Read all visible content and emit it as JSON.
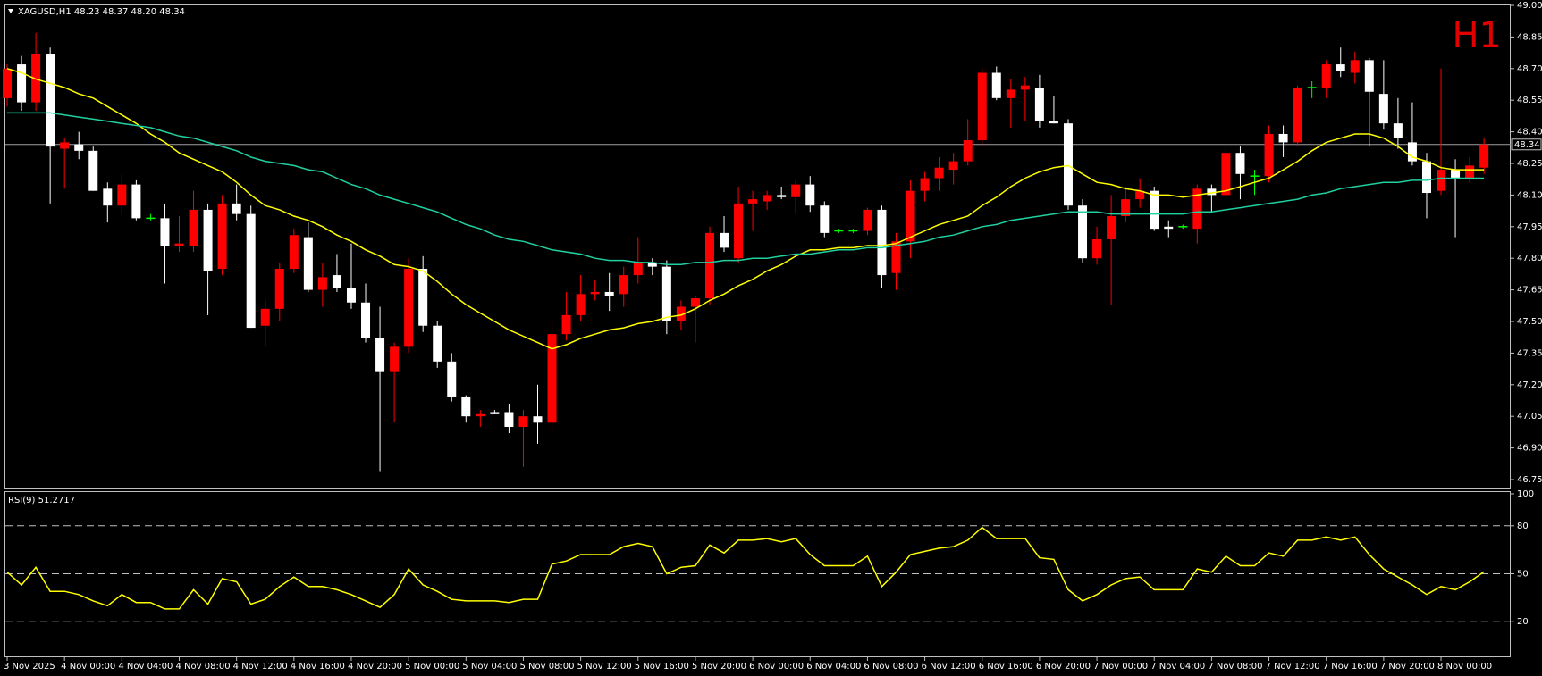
{
  "chart_data": [
    {
      "type": "candlestick",
      "title": "XAGUSD,H1  48.23 48.37 48.20 48.34",
      "timeframe_label": "H1",
      "up_color": "#ff0000",
      "down_color": "#ffffff",
      "doji_color": "#00ff00",
      "categories": [
        "3 Nov 2025",
        null,
        null,
        null,
        "4 Nov 00:00",
        null,
        null,
        null,
        "4 Nov 04:00",
        null,
        null,
        null,
        "4 Nov 08:00",
        null,
        null,
        null,
        "4 Nov 12:00",
        null,
        null,
        null,
        "4 Nov 16:00",
        null,
        null,
        null,
        "4 Nov 20:00",
        null,
        null,
        null,
        "5 Nov 00:00",
        null,
        null,
        null,
        "5 Nov 04:00",
        null,
        null,
        null,
        "5 Nov 08:00",
        null,
        null,
        null,
        "5 Nov 12:00",
        null,
        null,
        null,
        "5 Nov 16:00",
        null,
        null,
        null,
        "5 Nov 20:00",
        null,
        null,
        null,
        "6 Nov 00:00",
        null,
        null,
        null,
        "6 Nov 04:00",
        null,
        null,
        null,
        "6 Nov 08:00",
        null,
        null,
        null,
        "6 Nov 12:00",
        null,
        null,
        null,
        "6 Nov 16:00",
        null,
        null,
        null,
        "6 Nov 20:00",
        null,
        null,
        null,
        "7 Nov 00:00",
        null,
        null,
        null,
        "7 Nov 04:00",
        null,
        null,
        null,
        "7 Nov 08:00",
        null,
        null,
        null,
        "7 Nov 12:00",
        null,
        null,
        null,
        "7 Nov 16:00",
        null,
        null,
        null,
        "7 Nov 20:00",
        null,
        null,
        null,
        "8 Nov 00:00",
        null,
        null,
        null
      ],
      "open": [
        48.56,
        48.72,
        48.54,
        48.77,
        48.32,
        48.34,
        48.31,
        48.13,
        48.05,
        48.15,
        47.99,
        47.99,
        47.86,
        47.86,
        48.03,
        47.75,
        48.06,
        48.01,
        47.48,
        47.56,
        47.75,
        47.9,
        47.65,
        47.72,
        47.66,
        47.59,
        47.42,
        47.26,
        47.38,
        47.75,
        47.48,
        47.31,
        47.14,
        47.05,
        47.07,
        47.07,
        47.0,
        47.05,
        47.02,
        47.44,
        47.53,
        47.63,
        47.64,
        47.63,
        47.72,
        47.78,
        47.76,
        47.5,
        47.57,
        47.61,
        47.92,
        47.8,
        48.06,
        48.07,
        48.1,
        48.09,
        48.15,
        48.05,
        47.93,
        47.93,
        47.93,
        48.03,
        47.73,
        47.88,
        48.12,
        48.18,
        48.22,
        48.26,
        48.36,
        48.68,
        48.56,
        48.6,
        48.61,
        48.45,
        48.44,
        48.05,
        47.8,
        47.89,
        48.0,
        48.08,
        48.12,
        47.95,
        47.95,
        47.94,
        48.13,
        48.1,
        48.3,
        48.19,
        48.19,
        48.39,
        48.35,
        48.61,
        48.61,
        48.72,
        48.68,
        48.74,
        48.58,
        48.44,
        48.35,
        48.26,
        48.12,
        48.22,
        48.18,
        48.23
      ],
      "high": [
        48.72,
        48.76,
        48.87,
        48.8,
        48.37,
        48.4,
        48.33,
        48.16,
        48.2,
        48.17,
        48.01,
        48.06,
        48.0,
        48.12,
        48.06,
        48.1,
        48.15,
        48.05,
        47.6,
        47.78,
        47.94,
        47.97,
        47.78,
        47.82,
        47.87,
        47.68,
        47.57,
        47.4,
        47.8,
        47.81,
        47.5,
        47.35,
        47.15,
        47.08,
        47.08,
        47.11,
        47.08,
        47.2,
        47.52,
        47.64,
        47.72,
        47.7,
        47.73,
        47.76,
        47.9,
        47.8,
        47.79,
        47.6,
        47.62,
        47.95,
        48.0,
        48.14,
        48.12,
        48.12,
        48.14,
        48.17,
        48.19,
        48.07,
        47.94,
        47.94,
        48.04,
        48.05,
        47.92,
        48.17,
        48.21,
        48.28,
        48.3,
        48.46,
        48.7,
        48.71,
        48.65,
        48.66,
        48.67,
        48.57,
        48.46,
        48.08,
        47.95,
        48.1,
        48.14,
        48.18,
        48.14,
        47.98,
        47.96,
        48.15,
        48.15,
        48.35,
        48.33,
        48.22,
        48.43,
        48.43,
        48.62,
        48.64,
        48.74,
        48.8,
        48.78,
        48.75,
        48.74,
        48.56,
        48.54,
        48.3,
        48.7,
        48.27,
        48.28,
        48.37
      ],
      "low": [
        48.52,
        48.5,
        48.5,
        48.06,
        48.13,
        48.27,
        48.12,
        47.97,
        48.01,
        47.98,
        47.98,
        47.68,
        47.83,
        47.83,
        47.53,
        47.72,
        47.98,
        47.47,
        47.38,
        47.5,
        47.73,
        47.64,
        47.57,
        47.64,
        47.56,
        47.4,
        46.79,
        47.02,
        47.35,
        47.45,
        47.28,
        47.12,
        47.02,
        47.0,
        47.06,
        46.97,
        46.81,
        46.92,
        46.96,
        47.41,
        47.5,
        47.6,
        47.55,
        47.57,
        47.68,
        47.72,
        47.44,
        47.46,
        47.4,
        47.58,
        47.83,
        47.78,
        47.93,
        48.03,
        48.08,
        48.01,
        48.02,
        47.9,
        47.92,
        47.92,
        47.91,
        47.66,
        47.65,
        47.8,
        48.07,
        48.12,
        48.15,
        48.24,
        48.33,
        48.55,
        48.42,
        48.45,
        48.42,
        48.44,
        48.03,
        47.78,
        47.77,
        47.58,
        47.97,
        48.04,
        47.93,
        47.9,
        47.94,
        47.87,
        48.02,
        48.07,
        48.08,
        48.1,
        48.16,
        48.28,
        48.33,
        48.56,
        48.56,
        48.66,
        48.63,
        48.33,
        48.41,
        48.32,
        48.24,
        47.99,
        48.1,
        47.9,
        48.16,
        48.2
      ],
      "close": [
        48.7,
        48.54,
        48.77,
        48.33,
        48.35,
        48.31,
        48.12,
        48.05,
        48.15,
        47.99,
        47.99,
        47.86,
        47.87,
        48.03,
        47.74,
        48.06,
        48.01,
        47.47,
        47.56,
        47.75,
        47.91,
        47.65,
        47.71,
        47.66,
        47.59,
        47.42,
        47.26,
        47.38,
        47.75,
        47.48,
        47.31,
        47.14,
        47.05,
        47.06,
        47.06,
        47.0,
        47.05,
        47.02,
        47.44,
        47.53,
        47.63,
        47.64,
        47.62,
        47.72,
        47.78,
        47.76,
        47.5,
        47.57,
        47.61,
        47.92,
        47.85,
        48.06,
        48.08,
        48.1,
        48.09,
        48.15,
        48.05,
        47.92,
        47.93,
        47.93,
        48.03,
        47.72,
        47.88,
        48.12,
        48.18,
        48.23,
        48.26,
        48.36,
        48.68,
        48.56,
        48.6,
        48.62,
        48.45,
        48.44,
        48.05,
        47.8,
        47.89,
        48.0,
        48.08,
        48.12,
        47.94,
        47.94,
        47.95,
        48.13,
        48.1,
        48.3,
        48.2,
        48.19,
        48.39,
        48.35,
        48.61,
        48.61,
        48.72,
        48.69,
        48.74,
        48.59,
        48.44,
        48.37,
        48.26,
        48.11,
        48.22,
        48.18,
        48.24,
        48.34
      ],
      "overlays": [
        {
          "color": "#ffff00",
          "values": [
            48.7,
            48.68,
            48.65,
            48.63,
            48.61,
            48.58,
            48.56,
            48.52,
            48.48,
            48.44,
            48.39,
            48.35,
            48.3,
            48.27,
            48.24,
            48.21,
            48.16,
            48.1,
            48.05,
            48.03,
            48.0,
            47.98,
            47.95,
            47.91,
            47.88,
            47.84,
            47.81,
            47.77,
            47.76,
            47.74,
            47.69,
            47.63,
            47.58,
            47.54,
            47.5,
            47.46,
            47.43,
            47.4,
            47.37,
            47.39,
            47.42,
            47.44,
            47.46,
            47.47,
            47.49,
            47.5,
            47.52,
            47.53,
            47.56,
            47.6,
            47.63,
            47.67,
            47.7,
            47.74,
            47.77,
            47.81,
            47.84,
            47.84,
            47.85,
            47.85,
            47.86,
            47.86,
            47.87,
            47.9,
            47.93,
            47.96,
            47.98,
            48.0,
            48.05,
            48.09,
            48.14,
            48.18,
            48.21,
            48.23,
            48.24,
            48.2,
            48.16,
            48.15,
            48.13,
            48.12,
            48.1,
            48.1,
            48.09,
            48.1,
            48.11,
            48.12,
            48.14,
            48.16,
            48.18,
            48.22,
            48.26,
            48.31,
            48.35,
            48.37,
            48.39,
            48.39,
            48.37,
            48.33,
            48.28,
            48.26,
            48.23,
            48.22,
            48.22,
            48.22
          ]
        },
        {
          "color": "#20d0a0",
          "values": [
            48.49,
            48.49,
            48.49,
            48.49,
            48.48,
            48.47,
            48.46,
            48.45,
            48.44,
            48.43,
            48.42,
            48.4,
            48.38,
            48.37,
            48.35,
            48.33,
            48.31,
            48.28,
            48.26,
            48.25,
            48.24,
            48.22,
            48.21,
            48.18,
            48.15,
            48.13,
            48.1,
            48.08,
            48.06,
            48.04,
            48.02,
            47.99,
            47.96,
            47.94,
            47.91,
            47.89,
            47.88,
            47.86,
            47.84,
            47.83,
            47.82,
            47.8,
            47.79,
            47.79,
            47.78,
            47.78,
            47.77,
            47.77,
            47.78,
            47.78,
            47.79,
            47.79,
            47.8,
            47.8,
            47.81,
            47.82,
            47.82,
            47.83,
            47.84,
            47.84,
            47.85,
            47.85,
            47.86,
            47.87,
            47.88,
            47.9,
            47.91,
            47.93,
            47.95,
            47.96,
            47.98,
            47.99,
            48.0,
            48.01,
            48.02,
            48.02,
            48.02,
            48.01,
            48.01,
            48.01,
            48.01,
            48.01,
            48.01,
            48.02,
            48.02,
            48.03,
            48.04,
            48.05,
            48.06,
            48.07,
            48.08,
            48.1,
            48.11,
            48.13,
            48.14,
            48.15,
            48.16,
            48.16,
            48.17,
            48.17,
            48.18,
            48.18,
            48.18,
            48.18
          ]
        }
      ],
      "price_line": {
        "value": 48.34,
        "label": "48.34"
      },
      "ylim": [
        46.75,
        49.0
      ],
      "yticks": [
        {
          "value": 49.0,
          "label": "49.00"
        },
        {
          "value": 48.85,
          "label": "48.85"
        },
        {
          "value": 48.7,
          "label": "48.70"
        },
        {
          "value": 48.55,
          "label": "48.55"
        },
        {
          "value": 48.4,
          "label": "48.40"
        },
        {
          "value": 48.25,
          "label": "48.25"
        },
        {
          "value": 48.1,
          "label": "48.10"
        },
        {
          "value": 47.95,
          "label": "47.95"
        },
        {
          "value": 47.8,
          "label": "47.80"
        },
        {
          "value": 47.65,
          "label": "47.65"
        },
        {
          "value": 47.5,
          "label": "47.50"
        },
        {
          "value": 47.35,
          "label": "47.35"
        },
        {
          "value": 47.2,
          "label": "47.20"
        },
        {
          "value": 47.05,
          "label": "47.05"
        },
        {
          "value": 46.9,
          "label": "46.90"
        },
        {
          "value": 46.75,
          "label": "46.75"
        }
      ]
    },
    {
      "type": "line",
      "title": "RSI(9) 51.2717",
      "color": "#ffff00",
      "values": [
        51,
        43,
        54,
        39,
        39,
        37,
        33,
        30,
        37,
        32,
        32,
        28,
        28,
        40,
        31,
        47,
        45,
        31,
        34,
        42,
        48,
        42,
        42,
        40,
        37,
        33,
        29,
        37,
        53,
        43,
        39,
        34,
        33,
        33,
        33,
        32,
        34,
        34,
        56,
        58,
        62,
        62,
        62,
        67,
        69,
        67,
        50,
        54,
        55,
        68,
        63,
        71,
        71,
        72,
        70,
        72,
        62,
        55,
        55,
        55,
        61,
        42,
        51,
        62,
        64,
        66,
        67,
        71,
        79,
        72,
        72,
        72,
        60,
        59,
        40,
        33,
        37,
        43,
        47,
        48,
        40,
        40,
        40,
        53,
        51,
        61,
        55,
        55,
        63,
        61,
        71,
        71,
        73,
        71,
        73,
        62,
        53,
        48,
        43,
        37,
        42,
        40,
        45,
        51.2717
      ],
      "ylim": [
        0,
        100
      ],
      "yticks": [
        100,
        80,
        50,
        20
      ],
      "levels": [
        80,
        50,
        20
      ]
    }
  ]
}
